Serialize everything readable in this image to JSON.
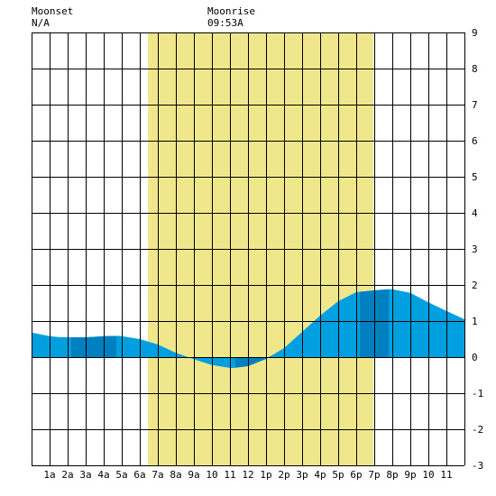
{
  "header": {
    "moonset_label": "Moonset",
    "moonset_value": "N/A",
    "moonrise_label": "Moonrise",
    "moonrise_value": "09:53A"
  },
  "chart_data": {
    "type": "area",
    "title": "",
    "xlabel": "",
    "ylabel": "",
    "xlim": [
      0,
      24
    ],
    "ylim": [
      -3,
      9
    ],
    "grid": true,
    "x_tick_labels": [
      "1a",
      "2a",
      "3a",
      "4a",
      "5a",
      "6a",
      "7a",
      "8a",
      "9a",
      "10",
      "11",
      "12",
      "1p",
      "2p",
      "3p",
      "4p",
      "5p",
      "6p",
      "7p",
      "8p",
      "9p",
      "10",
      "11"
    ],
    "y_tick_labels": [
      "9",
      "8",
      "7",
      "6",
      "5",
      "4",
      "3",
      "2",
      "1",
      "0",
      "-1",
      "-2",
      "-3"
    ],
    "daylight_span_hours": [
      6.45,
      18.95
    ],
    "daylight_color": "#f0e68c",
    "tide_color": "#00a0e0",
    "tide_dark_color": "#0080c0",
    "grid_color": "#000000",
    "dark_bands_hours": [
      [
        2.2,
        4.7
      ],
      [
        11.3,
        13.3
      ],
      [
        18.2,
        19.8
      ]
    ],
    "tide_series": {
      "name": "",
      "x": [
        0,
        1,
        1.6,
        2,
        3,
        3.7,
        4,
        4.8,
        5,
        6,
        7,
        8,
        9,
        10,
        11,
        11.2,
        12,
        13,
        14,
        15,
        16,
        17,
        18,
        19,
        19.8,
        20,
        21,
        22,
        23,
        24
      ],
      "y": [
        0.68,
        0.58,
        0.55,
        0.55,
        0.55,
        0.57,
        0.58,
        0.59,
        0.58,
        0.5,
        0.35,
        0.12,
        -0.06,
        -0.22,
        -0.3,
        -0.3,
        -0.25,
        -0.05,
        0.25,
        0.7,
        1.15,
        1.55,
        1.8,
        1.85,
        1.88,
        1.88,
        1.78,
        1.52,
        1.28,
        1.05
      ]
    }
  }
}
